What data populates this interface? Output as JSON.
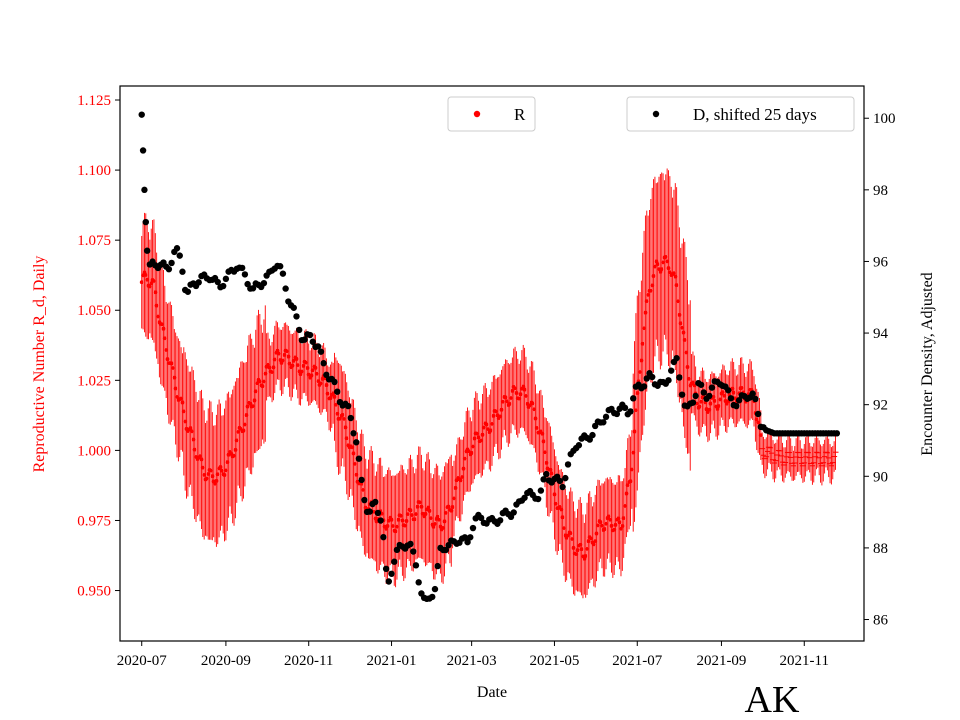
{
  "chart_data": {
    "type": "scatter",
    "title": "",
    "state_label": "AK",
    "xlabel": "Date",
    "ylabel_left": "Reproductive Number R_d, Daily",
    "ylabel_right": "Encounter Density, Adjusted",
    "x_range": [
      "2020-06-15",
      "2021-12-15"
    ],
    "x_ticks": [
      "2020-07",
      "2020-09",
      "2020-11",
      "2021-01",
      "2021-03",
      "2021-05",
      "2021-07",
      "2021-09",
      "2021-11"
    ],
    "x_tick_dates": [
      "2020-07-01",
      "2020-09-01",
      "2020-11-01",
      "2021-01-01",
      "2021-03-01",
      "2021-05-01",
      "2021-07-01",
      "2021-09-01",
      "2021-11-01"
    ],
    "y_left_ticks": [
      "0.950",
      "0.975",
      "1.000",
      "1.025",
      "1.050",
      "1.075",
      "1.100",
      "1.125"
    ],
    "y_left_range": [
      0.932,
      1.13
    ],
    "y_right_ticks": [
      "86",
      "88",
      "90",
      "92",
      "94",
      "96",
      "98",
      "100"
    ],
    "y_right_range": [
      85.4,
      100.9
    ],
    "colors": {
      "R": "#ff0000",
      "D": "#000000",
      "left_axis": "#ff0000"
    },
    "legend": {
      "R_label": "R",
      "D_label": "D, shifted 25 days",
      "R_placement": "top-center",
      "D_placement": "top-right"
    },
    "grid": false,
    "series": [
      {
        "name": "R",
        "axis": "left",
        "style": "points-with-error-bars",
        "points": [
          [
            "2020-07-01",
            1.06
          ],
          [
            "2020-07-05",
            1.062
          ],
          [
            "2020-07-10",
            1.058
          ],
          [
            "2020-07-15",
            1.045
          ],
          [
            "2020-07-20",
            1.035
          ],
          [
            "2020-07-25",
            1.025
          ],
          [
            "2020-08-01",
            1.013
          ],
          [
            "2020-08-08",
            1.003
          ],
          [
            "2020-08-15",
            0.993
          ],
          [
            "2020-08-22",
            0.99
          ],
          [
            "2020-08-29",
            0.992
          ],
          [
            "2020-09-05",
            0.998
          ],
          [
            "2020-09-12",
            1.007
          ],
          [
            "2020-09-19",
            1.016
          ],
          [
            "2020-09-26",
            1.024
          ],
          [
            "2020-10-03",
            1.029
          ],
          [
            "2020-10-10",
            1.034
          ],
          [
            "2020-10-17",
            1.033
          ],
          [
            "2020-10-24",
            1.03
          ],
          [
            "2020-10-31",
            1.029
          ],
          [
            "2020-11-07",
            1.027
          ],
          [
            "2020-11-14",
            1.023
          ],
          [
            "2020-11-21",
            1.016
          ],
          [
            "2020-11-28",
            1.008
          ],
          [
            "2020-12-05",
            0.995
          ],
          [
            "2020-12-12",
            0.982
          ],
          [
            "2020-12-19",
            0.978
          ],
          [
            "2020-12-26",
            0.975
          ],
          [
            "2021-01-02",
            0.973
          ],
          [
            "2021-01-09",
            0.975
          ],
          [
            "2021-01-16",
            0.977
          ],
          [
            "2021-01-23",
            0.98
          ],
          [
            "2021-01-30",
            0.976
          ],
          [
            "2021-02-06",
            0.973
          ],
          [
            "2021-02-13",
            0.979
          ],
          [
            "2021-02-20",
            0.99
          ],
          [
            "2021-02-27",
            1.0
          ],
          [
            "2021-03-06",
            1.005
          ],
          [
            "2021-03-13",
            1.008
          ],
          [
            "2021-03-20",
            1.013
          ],
          [
            "2021-03-27",
            1.018
          ],
          [
            "2021-04-03",
            1.021
          ],
          [
            "2021-04-10",
            1.02
          ],
          [
            "2021-04-17",
            1.012
          ],
          [
            "2021-04-24",
            1.0
          ],
          [
            "2021-05-01",
            0.985
          ],
          [
            "2021-05-08",
            0.973
          ],
          [
            "2021-05-15",
            0.966
          ],
          [
            "2021-05-22",
            0.963
          ],
          [
            "2021-05-29",
            0.968
          ],
          [
            "2021-06-05",
            0.974
          ],
          [
            "2021-06-12",
            0.974
          ],
          [
            "2021-06-19",
            0.973
          ],
          [
            "2021-06-26",
            0.99
          ],
          [
            "2021-07-01",
            1.018
          ],
          [
            "2021-07-05",
            1.04
          ],
          [
            "2021-07-10",
            1.058
          ],
          [
            "2021-07-15",
            1.065
          ],
          [
            "2021-07-20",
            1.067
          ],
          [
            "2021-07-25",
            1.066
          ],
          [
            "2021-07-30",
            1.058
          ],
          [
            "2021-08-04",
            1.04
          ],
          [
            "2021-08-09",
            1.025
          ],
          [
            "2021-08-14",
            1.018
          ],
          [
            "2021-08-21",
            1.016
          ],
          [
            "2021-08-28",
            1.017
          ],
          [
            "2021-09-04",
            1.019
          ],
          [
            "2021-09-11",
            1.02
          ],
          [
            "2021-09-18",
            1.02
          ],
          [
            "2021-09-25",
            1.019
          ],
          [
            "2021-10-01",
            1.0
          ],
          [
            "2021-10-10",
            0.998
          ],
          [
            "2021-10-20",
            0.997
          ],
          [
            "2021-10-30",
            0.997
          ],
          [
            "2021-11-10",
            0.997
          ],
          [
            "2021-11-24",
            0.997
          ]
        ]
      },
      {
        "name": "D, shifted 25 days",
        "axis": "right",
        "style": "points",
        "points": [
          [
            "2020-07-01",
            100.1
          ],
          [
            "2020-07-02",
            99.1
          ],
          [
            "2020-07-03",
            98.0
          ],
          [
            "2020-07-04",
            97.1
          ],
          [
            "2020-07-05",
            96.3
          ],
          [
            "2020-07-07",
            95.8
          ],
          [
            "2020-07-10",
            96.0
          ],
          [
            "2020-07-14",
            95.9
          ],
          [
            "2020-07-20",
            95.8
          ],
          [
            "2020-07-26",
            96.3
          ],
          [
            "2020-07-30",
            96.1
          ],
          [
            "2020-08-03",
            95.0
          ],
          [
            "2020-08-08",
            95.4
          ],
          [
            "2020-08-14",
            95.5
          ],
          [
            "2020-08-20",
            95.6
          ],
          [
            "2020-08-27",
            95.3
          ],
          [
            "2020-09-03",
            95.6
          ],
          [
            "2020-09-09",
            95.9
          ],
          [
            "2020-09-15",
            95.6
          ],
          [
            "2020-09-21",
            95.2
          ],
          [
            "2020-09-27",
            95.4
          ],
          [
            "2020-10-03",
            95.6
          ],
          [
            "2020-10-08",
            96.0
          ],
          [
            "2020-10-12",
            95.7
          ],
          [
            "2020-10-17",
            95.0
          ],
          [
            "2020-10-22",
            94.5
          ],
          [
            "2020-10-28",
            93.8
          ],
          [
            "2020-11-03",
            93.9
          ],
          [
            "2020-11-08",
            93.6
          ],
          [
            "2020-11-13",
            93.0
          ],
          [
            "2020-11-19",
            92.6
          ],
          [
            "2020-11-25",
            92.1
          ],
          [
            "2020-12-01",
            91.8
          ],
          [
            "2020-12-06",
            91.0
          ],
          [
            "2020-12-11",
            89.5
          ],
          [
            "2020-12-15",
            89.0
          ],
          [
            "2020-12-20",
            89.2
          ],
          [
            "2020-12-25",
            88.8
          ],
          [
            "2020-12-28",
            87.3
          ],
          [
            "2020-12-30",
            87.0
          ],
          [
            "2021-01-04",
            87.9
          ],
          [
            "2021-01-09",
            88.0
          ],
          [
            "2021-01-14",
            88.2
          ],
          [
            "2021-01-19",
            87.5
          ],
          [
            "2021-01-23",
            86.8
          ],
          [
            "2021-01-26",
            86.4
          ],
          [
            "2021-01-29",
            86.6
          ],
          [
            "2021-02-02",
            86.9
          ],
          [
            "2021-02-06",
            87.9
          ],
          [
            "2021-02-11",
            88.1
          ],
          [
            "2021-02-16",
            88.1
          ],
          [
            "2021-02-21",
            88.3
          ],
          [
            "2021-02-26",
            88.1
          ],
          [
            "2021-03-03",
            88.8
          ],
          [
            "2021-03-10",
            88.8
          ],
          [
            "2021-03-17",
            88.7
          ],
          [
            "2021-03-24",
            88.9
          ],
          [
            "2021-03-31",
            89.0
          ],
          [
            "2021-04-05",
            89.2
          ],
          [
            "2021-04-10",
            89.6
          ],
          [
            "2021-04-15",
            89.4
          ],
          [
            "2021-04-20",
            89.5
          ],
          [
            "2021-04-25",
            90.0
          ],
          [
            "2021-05-01",
            89.9
          ],
          [
            "2021-05-07",
            89.8
          ],
          [
            "2021-05-12",
            90.4
          ],
          [
            "2021-05-17",
            90.9
          ],
          [
            "2021-05-22",
            91.0
          ],
          [
            "2021-05-29",
            91.2
          ],
          [
            "2021-06-05",
            91.6
          ],
          [
            "2021-06-12",
            91.8
          ],
          [
            "2021-06-19",
            91.9
          ],
          [
            "2021-06-25",
            91.8
          ],
          [
            "2021-07-01",
            92.5
          ],
          [
            "2021-07-06",
            92.6
          ],
          [
            "2021-07-11",
            92.8
          ],
          [
            "2021-07-16",
            92.6
          ],
          [
            "2021-07-21",
            92.5
          ],
          [
            "2021-07-26",
            93.0
          ],
          [
            "2021-07-30",
            93.2
          ],
          [
            "2021-08-03",
            92.4
          ],
          [
            "2021-08-06",
            91.8
          ],
          [
            "2021-08-10",
            92.0
          ],
          [
            "2021-08-15",
            92.6
          ],
          [
            "2021-08-20",
            92.2
          ],
          [
            "2021-08-26",
            92.5
          ],
          [
            "2021-09-01",
            92.7
          ],
          [
            "2021-09-07",
            92.2
          ],
          [
            "2021-09-13",
            92.0
          ],
          [
            "2021-09-19",
            92.3
          ],
          [
            "2021-09-25",
            92.2
          ],
          [
            "2021-09-30",
            91.5
          ],
          [
            "2021-10-03",
            91.3
          ],
          [
            "2021-10-10",
            91.2
          ],
          [
            "2021-10-20",
            91.2
          ],
          [
            "2021-10-30",
            91.2
          ],
          [
            "2021-11-10",
            91.2
          ],
          [
            "2021-11-20",
            91.2
          ],
          [
            "2021-11-25",
            91.2
          ]
        ]
      }
    ]
  }
}
